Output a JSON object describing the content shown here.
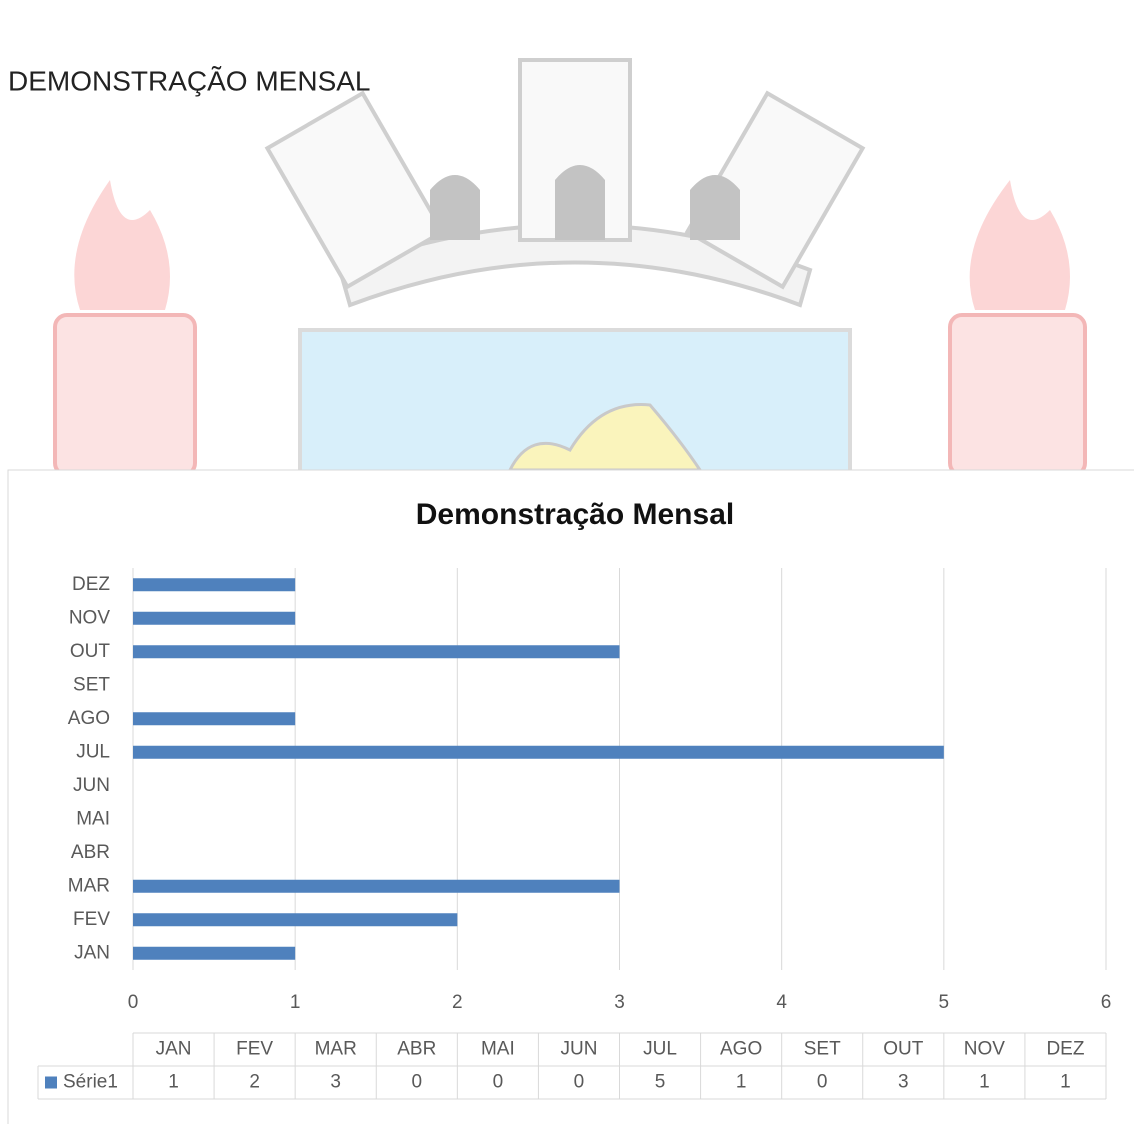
{
  "heading": "DEMONSTRAÇÃO MENSAL",
  "chart_data": {
    "type": "bar",
    "orientation": "horizontal",
    "title": "Demonstração Mensal",
    "categories": [
      "JAN",
      "FEV",
      "MAR",
      "ABR",
      "MAI",
      "JUN",
      "JUL",
      "AGO",
      "SET",
      "OUT",
      "NOV",
      "DEZ"
    ],
    "series": [
      {
        "name": "Série1",
        "color": "#4f81bd",
        "values": [
          1,
          2,
          3,
          0,
          0,
          0,
          5,
          1,
          0,
          3,
          1,
          1
        ]
      }
    ],
    "xlim": [
      0,
      6
    ],
    "xticks": [
      0,
      1,
      2,
      3,
      4,
      5,
      6
    ],
    "grid": true,
    "data_table": true
  }
}
